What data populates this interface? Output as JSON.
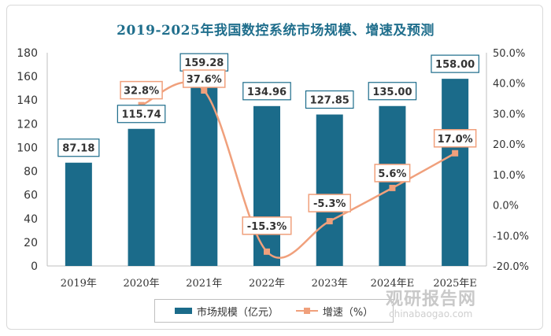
{
  "chart_data": {
    "type": "bar",
    "title": "2019-2025年我国数控系统市场规模、增速及预测",
    "categories": [
      "2019年",
      "2020年",
      "2021年",
      "2022年",
      "2023年",
      "2024年E",
      "2025年E"
    ],
    "series": [
      {
        "name": "市场规模（亿元）",
        "type": "bar",
        "axis": "left",
        "values": [
          87.18,
          115.74,
          159.28,
          134.96,
          127.85,
          135.0,
          158.0
        ],
        "labels": [
          "87.18",
          "115.74",
          "159.28",
          "134.96",
          "127.85",
          "135.00",
          "158.00"
        ]
      },
      {
        "name": "增速（%）",
        "type": "line",
        "axis": "right",
        "values": [
          null,
          32.8,
          37.6,
          -15.3,
          -5.3,
          5.6,
          17.0
        ],
        "labels": [
          "",
          "32.8%",
          "37.6%",
          "-15.3%",
          "-5.3%",
          "5.6%",
          "17.0%"
        ]
      }
    ],
    "y_left": {
      "min": 0,
      "max": 180,
      "step": 20,
      "ticks": [
        "0",
        "20",
        "40",
        "60",
        "80",
        "100",
        "120",
        "140",
        "160",
        "180"
      ]
    },
    "y_right": {
      "min": -20,
      "max": 50,
      "step": 10,
      "ticks": [
        "-20.0%",
        "-10.0%",
        "0.0%",
        "10.0%",
        "20.0%",
        "30.0%",
        "40.0%",
        "50.0%"
      ]
    },
    "grid": false,
    "legend": "bottom"
  },
  "colors": {
    "bar": "#1b6b8a",
    "line": "#f0a07c",
    "title": "#1f6e8c",
    "label_border_bar": "#1b6b8a",
    "label_border_line": "#f0a07c"
  },
  "watermark": {
    "text": "观研报告网",
    "sub": "chinabaogao.com"
  }
}
